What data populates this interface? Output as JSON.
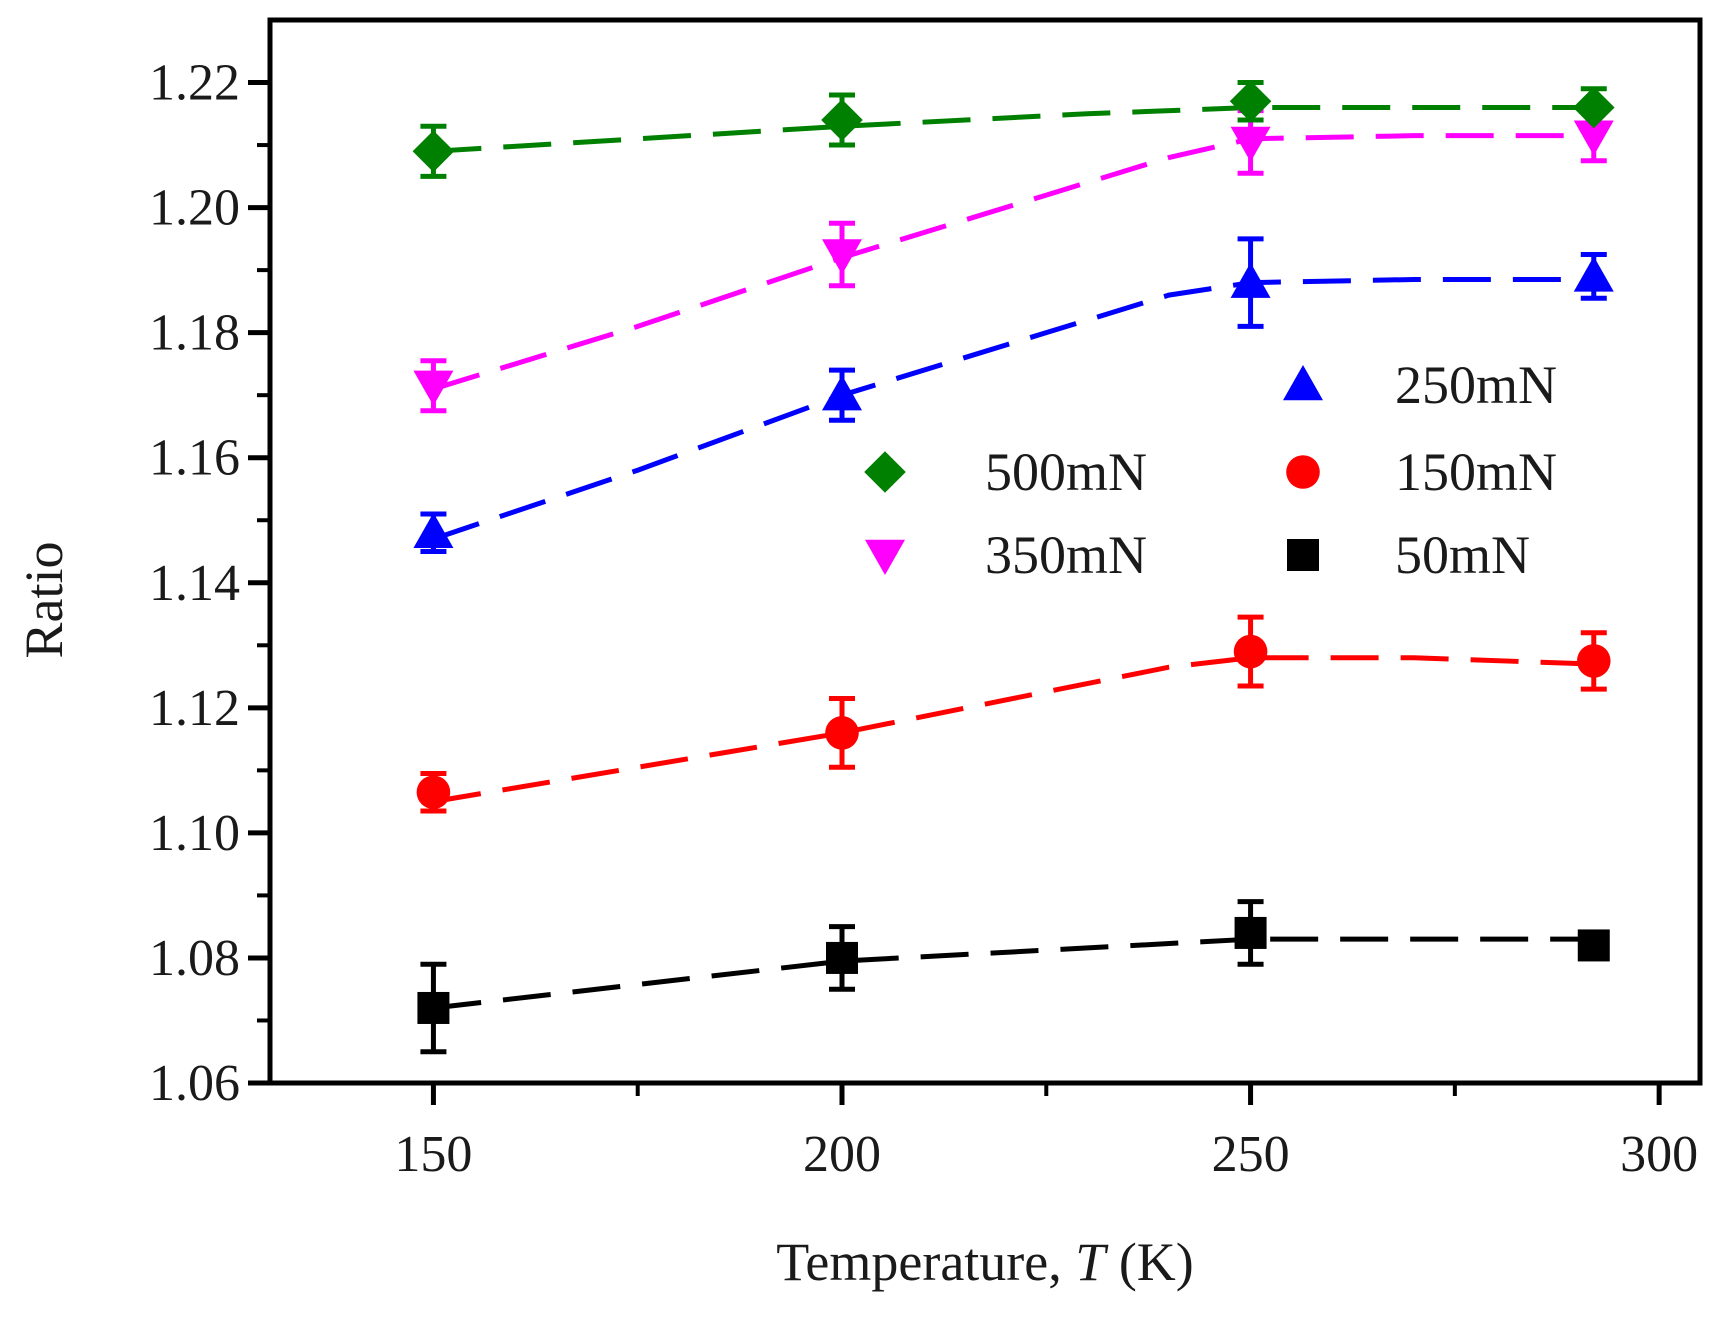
{
  "chart_data": {
    "type": "scatter",
    "title": "",
    "xlabel_prefix": "Temperature, ",
    "xlabel_var": "T",
    "xlabel_suffix": " (K)",
    "ylabel": "Ratio",
    "xlim": [
      130,
      305
    ],
    "ylim": [
      1.06,
      1.23
    ],
    "x_ticks": [
      150,
      200,
      250,
      300
    ],
    "x_minor_ticks": [
      175,
      225,
      275
    ],
    "y_ticks": [
      1.06,
      1.08,
      1.1,
      1.12,
      1.14,
      1.16,
      1.18,
      1.2,
      1.22
    ],
    "y_tick_labels": [
      "1.06",
      "1.08",
      "1.10",
      "1.12",
      "1.14",
      "1.16",
      "1.18",
      "1.20",
      "1.22"
    ],
    "x_tick_labels": [
      "150",
      "200",
      "250",
      "300"
    ],
    "grid": false,
    "legend_position": "center-right",
    "series": [
      {
        "name": "50mN",
        "color": "#000000",
        "marker": "square",
        "x": [
          150,
          200,
          250,
          292
        ],
        "y": [
          1.072,
          1.08,
          1.084,
          1.082
        ],
        "err": [
          0.007,
          0.005,
          0.005,
          0.002
        ],
        "fit": [
          [
            150,
            1.072
          ],
          [
            200,
            1.0795
          ],
          [
            250,
            1.083
          ],
          [
            292,
            1.083
          ]
        ]
      },
      {
        "name": "150mN",
        "color": "#ff0000",
        "marker": "circle",
        "x": [
          150,
          200,
          250,
          292
        ],
        "y": [
          1.1065,
          1.116,
          1.129,
          1.1275
        ],
        "err": [
          0.003,
          0.0055,
          0.0055,
          0.0045
        ],
        "fit": [
          [
            150,
            1.105
          ],
          [
            200,
            1.116
          ],
          [
            240,
            1.1265
          ],
          [
            250,
            1.128
          ],
          [
            270,
            1.128
          ],
          [
            292,
            1.127
          ]
        ]
      },
      {
        "name": "250mN",
        "color": "#0000ff",
        "marker": "triangle-up",
        "x": [
          150,
          200,
          250,
          292
        ],
        "y": [
          1.148,
          1.17,
          1.188,
          1.189
        ],
        "err": [
          0.003,
          0.004,
          0.007,
          0.0035
        ],
        "fit": [
          [
            150,
            1.147
          ],
          [
            175,
            1.158
          ],
          [
            200,
            1.17
          ],
          [
            225,
            1.18
          ],
          [
            240,
            1.186
          ],
          [
            250,
            1.188
          ],
          [
            270,
            1.1885
          ],
          [
            292,
            1.1885
          ]
        ]
      },
      {
        "name": "350mN",
        "color": "#ff00ff",
        "marker": "triangle-down",
        "x": [
          150,
          200,
          250,
          292
        ],
        "y": [
          1.1715,
          1.1925,
          1.2105,
          1.2115
        ],
        "err": [
          0.004,
          0.005,
          0.005,
          0.004
        ],
        "fit": [
          [
            150,
            1.171
          ],
          [
            175,
            1.181
          ],
          [
            200,
            1.192
          ],
          [
            225,
            1.202
          ],
          [
            240,
            1.208
          ],
          [
            250,
            1.211
          ],
          [
            270,
            1.2115
          ],
          [
            292,
            1.2115
          ]
        ]
      },
      {
        "name": "500mN",
        "color": "#008000",
        "marker": "diamond",
        "x": [
          150,
          200,
          250,
          292
        ],
        "y": [
          1.209,
          1.214,
          1.217,
          1.216
        ],
        "err": [
          0.004,
          0.004,
          0.003,
          0.003
        ],
        "fit": [
          [
            150,
            1.209
          ],
          [
            200,
            1.213
          ],
          [
            230,
            1.215
          ],
          [
            250,
            1.216
          ],
          [
            292,
            1.216
          ]
        ]
      }
    ],
    "legend_layout": [
      {
        "series": "250mN",
        "row": 0,
        "col": 1
      },
      {
        "series": "500mN",
        "row": 1,
        "col": 0
      },
      {
        "series": "150mN",
        "row": 1,
        "col": 1
      },
      {
        "series": "350mN",
        "row": 2,
        "col": 0
      },
      {
        "series": "50mN",
        "row": 2,
        "col": 1
      }
    ]
  }
}
